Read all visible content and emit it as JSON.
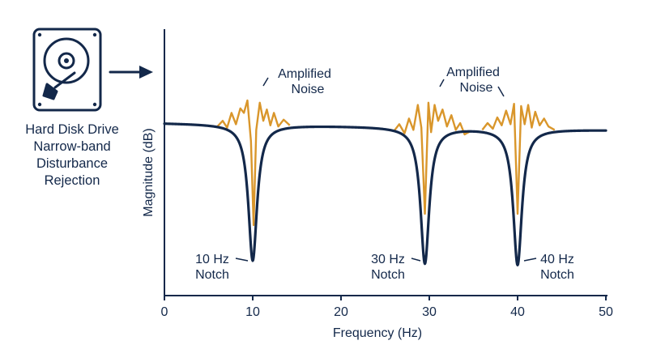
{
  "panel": {
    "lines": [
      "Hard Disk Drive",
      "Narrow-band",
      "Disturbance",
      "Rejection"
    ],
    "icon": "hard-disk-drive-icon",
    "arrow_icon": "right-arrow-icon"
  },
  "colors": {
    "navy": "#13284a",
    "noise": "#d9962b",
    "background": "#ffffff"
  },
  "chart_data": {
    "type": "line",
    "title": "",
    "xlabel": "Frequency (Hz)",
    "ylabel": "Magnitude (dB)",
    "xlim": [
      0,
      50
    ],
    "xticks": [
      0,
      10,
      20,
      30,
      40,
      50
    ],
    "yticks_shown": false,
    "grid": false,
    "series": [
      {
        "role": "response",
        "color": "#13284a",
        "baseline": 0.0,
        "end_value": -0.3,
        "notches": [
          {
            "freq": 10,
            "depth": -6.0,
            "label": [
              "10 Hz",
              "Notch"
            ],
            "label_side": "left"
          },
          {
            "freq": 29.5,
            "depth": -6.0,
            "label": [
              "30 Hz",
              "Notch"
            ],
            "label_side": "left"
          },
          {
            "freq": 40,
            "depth": -6.0,
            "label": [
              "40 Hz",
              "Notch"
            ],
            "label_side": "right"
          }
        ]
      },
      {
        "role": "noise",
        "color": "#d9962b",
        "segments": [
          {
            "x": [
              6.0,
              6.6,
              7.1,
              7.6,
              8.1,
              8.6,
              9.0,
              9.4,
              9.8,
              10.1,
              10.4,
              10.8,
              11.2,
              11.6,
              12.0,
              12.4,
              12.9,
              13.5,
              14.2
            ],
            "y": [
              -0.15,
              0.1,
              -0.2,
              0.45,
              -0.05,
              0.65,
              0.45,
              1.0,
              -0.8,
              -4.5,
              -0.3,
              0.9,
              0.1,
              0.6,
              -0.1,
              0.45,
              -0.15,
              0.15,
              -0.1
            ]
          },
          {
            "x": [
              26.0,
              26.6,
              27.2,
              27.7,
              28.2,
              28.7,
              29.1,
              29.5,
              29.9,
              30.2,
              30.6,
              31.0,
              31.5,
              32.0,
              32.5,
              33.0,
              33.5,
              34.0,
              34.7
            ],
            "y": [
              -0.35,
              -0.05,
              -0.45,
              0.2,
              -0.3,
              0.8,
              -0.2,
              -4.0,
              0.9,
              -0.4,
              0.8,
              0.1,
              0.6,
              -0.15,
              0.35,
              -0.3,
              0.0,
              -0.5,
              -0.35
            ]
          },
          {
            "x": [
              36.0,
              36.6,
              37.2,
              37.7,
              38.2,
              38.7,
              39.2,
              39.6,
              40.0,
              40.4,
              40.8,
              41.2,
              41.6,
              42.0,
              42.5,
              43.0,
              43.5,
              44.2
            ],
            "y": [
              -0.3,
              0.0,
              -0.25,
              0.25,
              -0.1,
              0.55,
              -0.05,
              0.85,
              -4.0,
              0.75,
              -0.05,
              0.8,
              -0.2,
              0.5,
              -0.1,
              0.2,
              -0.15,
              -0.3
            ]
          }
        ]
      }
    ],
    "annotations": [
      {
        "lines": [
          "Amplified",
          "Noise"
        ],
        "near_freq": 11
      },
      {
        "lines": [
          "Amplified",
          "Noise"
        ],
        "near_freq": 31
      }
    ]
  }
}
